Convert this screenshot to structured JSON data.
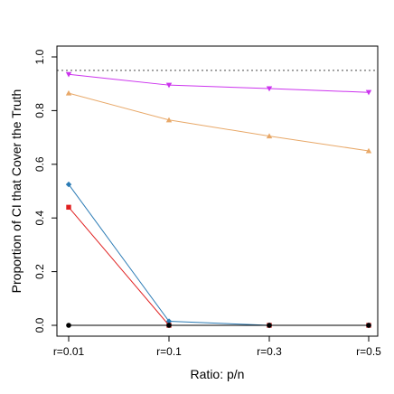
{
  "chart_data": {
    "type": "line",
    "title": "",
    "xlabel": "Ratio: p/n",
    "ylabel": "Proportion of CI that Cover the Truth",
    "categories": [
      "r=0.01",
      "r=0.1",
      "r=0.3",
      "r=0.5"
    ],
    "ylim": [
      0.0,
      1.0
    ],
    "yticks": [
      0.0,
      0.2,
      0.4,
      0.6,
      0.8,
      1.0
    ],
    "ytick_labels": [
      "0.0",
      "0.2",
      "0.4",
      "0.6",
      "0.8",
      "1.0"
    ],
    "reference_line": {
      "value": 0.95,
      "style": "dotted",
      "color": "#888888"
    },
    "grid": false,
    "legend": "none",
    "series": [
      {
        "color": "#cc33ee",
        "marker": "triangle-down",
        "values": [
          0.935,
          0.895,
          0.882,
          0.868
        ]
      },
      {
        "color": "#e8a868",
        "marker": "triangle-up",
        "values": [
          0.865,
          0.765,
          0.705,
          0.65
        ]
      },
      {
        "color": "#2b7bb5",
        "marker": "diamond",
        "values": [
          0.525,
          0.015,
          0.0,
          0.0
        ]
      },
      {
        "color": "#e02020",
        "marker": "square",
        "values": [
          0.44,
          0.0,
          0.0,
          0.0
        ]
      },
      {
        "color": "#000000",
        "marker": "circle",
        "values": [
          0.0,
          0.0,
          0.0,
          0.0
        ]
      }
    ]
  }
}
